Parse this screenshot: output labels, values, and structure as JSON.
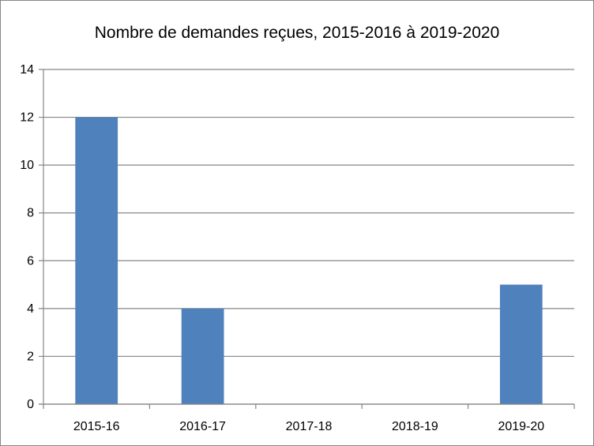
{
  "chart_data": {
    "type": "bar",
    "title": "Nombre de demandes reçues, 2015-2016 à 2019-2020",
    "categories": [
      "2015-16",
      "2016-17",
      "2017-18",
      "2018-19",
      "2019-20"
    ],
    "values": [
      12,
      4,
      0,
      0,
      5
    ],
    "ylim": [
      0,
      14
    ],
    "yticks": [
      0,
      2,
      4,
      6,
      8,
      10,
      12,
      14
    ],
    "xlabel": "",
    "ylabel": "",
    "grid": true,
    "legend": "none",
    "bar_color": "#4F81BD",
    "gridline_color": "#868686"
  }
}
